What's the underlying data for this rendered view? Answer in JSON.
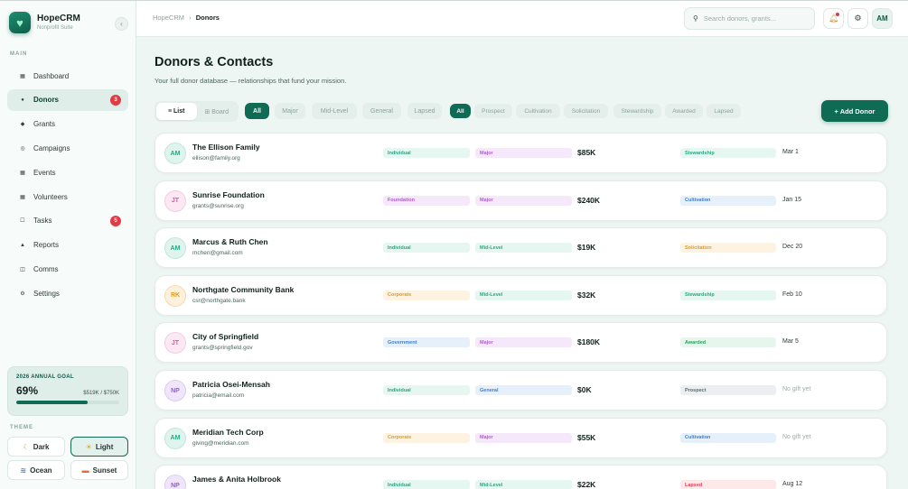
{
  "brand": {
    "name": "HopeCRM",
    "subtitle": "Nonprofit Suite",
    "logo_icon": "heart-icon"
  },
  "sidebar": {
    "section_label": "MAIN",
    "items": [
      {
        "label": "Dashboard",
        "icon": "grid-icon",
        "badge": null,
        "active": false
      },
      {
        "label": "Donors",
        "icon": "dot-icon",
        "badge": "3",
        "active": true
      },
      {
        "label": "Grants",
        "icon": "diamond-icon",
        "badge": null,
        "active": false
      },
      {
        "label": "Campaigns",
        "icon": "target-icon",
        "badge": null,
        "active": false
      },
      {
        "label": "Events",
        "icon": "calendar-icon",
        "badge": null,
        "active": false
      },
      {
        "label": "Volunteers",
        "icon": "people-icon",
        "badge": null,
        "active": false
      },
      {
        "label": "Tasks",
        "icon": "checkbox-icon",
        "badge": "5",
        "active": false
      },
      {
        "label": "Reports",
        "icon": "chart-icon",
        "badge": null,
        "active": false
      },
      {
        "label": "Comms",
        "icon": "message-icon",
        "badge": null,
        "active": false
      },
      {
        "label": "Settings",
        "icon": "gear-icon",
        "badge": null,
        "active": false
      }
    ]
  },
  "goal": {
    "title": "2026 ANNUAL GOAL",
    "percent_label": "69%",
    "progress": 0.69,
    "amount": "$519K / $750K"
  },
  "theme": {
    "label": "THEME",
    "options": [
      {
        "label": "Dark",
        "icon": "moon-icon",
        "active": false
      },
      {
        "label": "Light",
        "icon": "sun-icon",
        "active": true
      },
      {
        "label": "Ocean",
        "icon": "wave-icon",
        "active": false
      },
      {
        "label": "Sunset",
        "icon": "sunset-icon",
        "active": false
      }
    ]
  },
  "topbar": {
    "breadcrumb_root": "HopeCRM",
    "breadcrumb_sep": "›",
    "breadcrumb_current": "Donors",
    "search_placeholder": "Search donors, grants...",
    "avatar_initials": "AM"
  },
  "page": {
    "title": "Donors & Contacts",
    "subtitle": "Your full donor database — relationships that fund your mission.",
    "view_toggle": [
      "≡ List",
      "⊞ Board"
    ],
    "level_filters": [
      "All",
      "Major",
      "Mid-Level",
      "General",
      "Lapsed"
    ],
    "stage_filters": [
      "All",
      "Prospect",
      "Cultivation",
      "Solicitation",
      "Stewardship",
      "Awarded",
      "Lapsed"
    ],
    "add_button": "+ Add Donor"
  },
  "colors": {
    "accent": "#0f6b54",
    "badge_red": "#e03c46",
    "type": {
      "Individual": {
        "bg": "#e6f6f0",
        "fg": "#2aa683"
      },
      "Foundation": {
        "bg": "#f5e8fb",
        "fg": "#b25ad3"
      },
      "Corporate": {
        "bg": "#fdf3e0",
        "fg": "#e09b25"
      },
      "Government": {
        "bg": "#e6f0fb",
        "fg": "#3d7fcf"
      }
    },
    "level": {
      "Major": {
        "bg": "#f5e8fb",
        "fg": "#b25ad3"
      },
      "Mid-Level": {
        "bg": "#e6f6f0",
        "fg": "#2aa683"
      },
      "General": {
        "bg": "#e6f0fb",
        "fg": "#3d7fcf"
      }
    },
    "stage": {
      "Stewardship": {
        "bg": "#e6f6f0",
        "fg": "#2aa683"
      },
      "Cultivation": {
        "bg": "#e6f0fb",
        "fg": "#3d7fcf"
      },
      "Solicitation": {
        "bg": "#fdf3e0",
        "fg": "#e09b25"
      },
      "Awarded": {
        "bg": "#e6f6ec",
        "fg": "#2e9e5a"
      },
      "Prospect": {
        "bg": "#eceff1",
        "fg": "#5f6b70"
      },
      "Lapsed": {
        "bg": "#fde8ea",
        "fg": "#d9435a"
      }
    },
    "avatar": {
      "AM": {
        "bg": "#e0f4ee",
        "fg": "#2aa683",
        "border": "#bfe7da"
      },
      "JT": {
        "bg": "#fbe8f3",
        "fg": "#d45aa0",
        "border": "#f3cde3"
      },
      "RK": {
        "bg": "#fdf1dc",
        "fg": "#e09b25",
        "border": "#f6dcae"
      },
      "NP": {
        "bg": "#f0e6fb",
        "fg": "#9a5ad3",
        "border": "#ddccf3"
      }
    }
  },
  "donors": [
    {
      "initials": "AM",
      "name": "The Ellison Family",
      "email": "ellison@family.org",
      "type": "Individual",
      "level": "Major",
      "amount": "$85K",
      "stage": "Stewardship",
      "last_gift": "Mar 1",
      "muted": false
    },
    {
      "initials": "JT",
      "name": "Sunrise Foundation",
      "email": "grants@sunrise.org",
      "type": "Foundation",
      "level": "Major",
      "amount": "$240K",
      "stage": "Cultivation",
      "last_gift": "Jan 15",
      "muted": false
    },
    {
      "initials": "AM",
      "name": "Marcus & Ruth Chen",
      "email": "mchen@gmail.com",
      "type": "Individual",
      "level": "Mid-Level",
      "amount": "$19K",
      "stage": "Solicitation",
      "last_gift": "Dec 20",
      "muted": false
    },
    {
      "initials": "RK",
      "name": "Northgate Community Bank",
      "email": "csr@northgate.bank",
      "type": "Corporate",
      "level": "Mid-Level",
      "amount": "$32K",
      "stage": "Stewardship",
      "last_gift": "Feb 10",
      "muted": false
    },
    {
      "initials": "JT",
      "name": "City of Springfield",
      "email": "grants@springfield.gov",
      "type": "Government",
      "level": "Major",
      "amount": "$180K",
      "stage": "Awarded",
      "last_gift": "Mar 5",
      "muted": false
    },
    {
      "initials": "NP",
      "name": "Patricia Osei-Mensah",
      "email": "patricia@email.com",
      "type": "Individual",
      "level": "General",
      "amount": "$0K",
      "stage": "Prospect",
      "last_gift": "No gift yet",
      "muted": true
    },
    {
      "initials": "AM",
      "name": "Meridian Tech Corp",
      "email": "giving@meridian.com",
      "type": "Corporate",
      "level": "Major",
      "amount": "$55K",
      "stage": "Cultivation",
      "last_gift": "No gift yet",
      "muted": true
    },
    {
      "initials": "NP",
      "name": "James & Anita Holbrook",
      "email": "",
      "type": "Individual",
      "level": "Mid-Level",
      "amount": "$22K",
      "stage": "Lapsed",
      "last_gift": "Aug 12",
      "muted": false
    }
  ]
}
